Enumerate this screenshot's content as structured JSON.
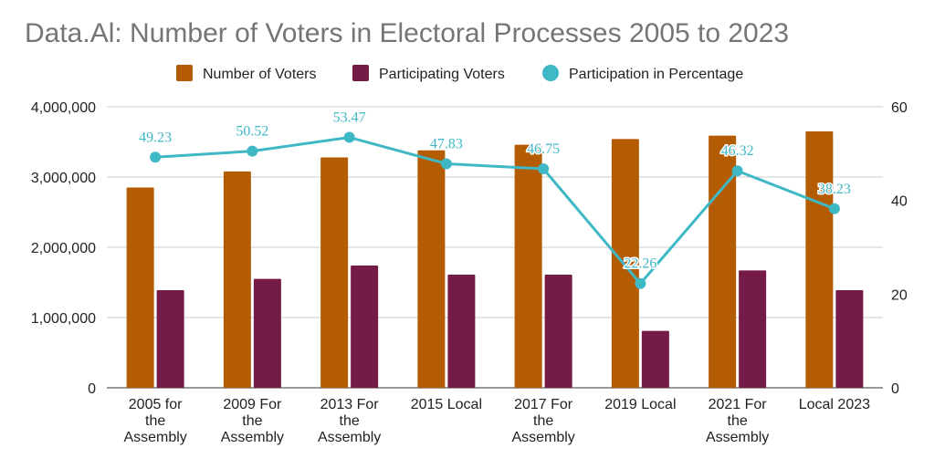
{
  "chart_data": {
    "type": "bar",
    "title": "Data.Al: Number of Voters in Electoral Processes 2005 to 2023",
    "categories": [
      [
        "2005 for",
        "the",
        "Assembly"
      ],
      [
        "2009 For",
        "the",
        "Assembly"
      ],
      [
        "2013 For",
        "the",
        "Assembly"
      ],
      [
        "2015 Local"
      ],
      [
        "2017 For",
        "the",
        "Assembly"
      ],
      [
        "2019 Local"
      ],
      [
        "2021 For",
        "the",
        "Assembly"
      ],
      [
        "Local 2023"
      ]
    ],
    "series": [
      {
        "name": "Number of Voters",
        "type": "bar",
        "axis": "left",
        "color": "#b35c04",
        "values": [
          2850000,
          3080000,
          3280000,
          3380000,
          3460000,
          3540000,
          3590000,
          3650000
        ]
      },
      {
        "name": "Participating Voters",
        "type": "bar",
        "axis": "left",
        "color": "#741b47",
        "values": [
          1390000,
          1550000,
          1740000,
          1610000,
          1610000,
          810000,
          1670000,
          1390000
        ]
      },
      {
        "name": "Participation in Percentage",
        "type": "line",
        "axis": "right",
        "color": "#3fb8c6",
        "values": [
          49.23,
          50.52,
          53.47,
          47.83,
          46.75,
          22.26,
          46.32,
          38.23
        ],
        "labels": [
          "49.23",
          "50.52",
          "53.47",
          "47.83",
          "46.75",
          "22.26",
          "46.32",
          "38.23"
        ]
      }
    ],
    "y_left": {
      "min": 0,
      "max": 4000000,
      "ticks": [
        "0",
        "1,000,000",
        "2,000,000",
        "3,000,000",
        "4,000,000"
      ]
    },
    "y_right": {
      "min": 0,
      "max": 60,
      "ticks": [
        "0",
        "20",
        "40",
        "60"
      ]
    },
    "grid": true,
    "legend": "top-center"
  }
}
